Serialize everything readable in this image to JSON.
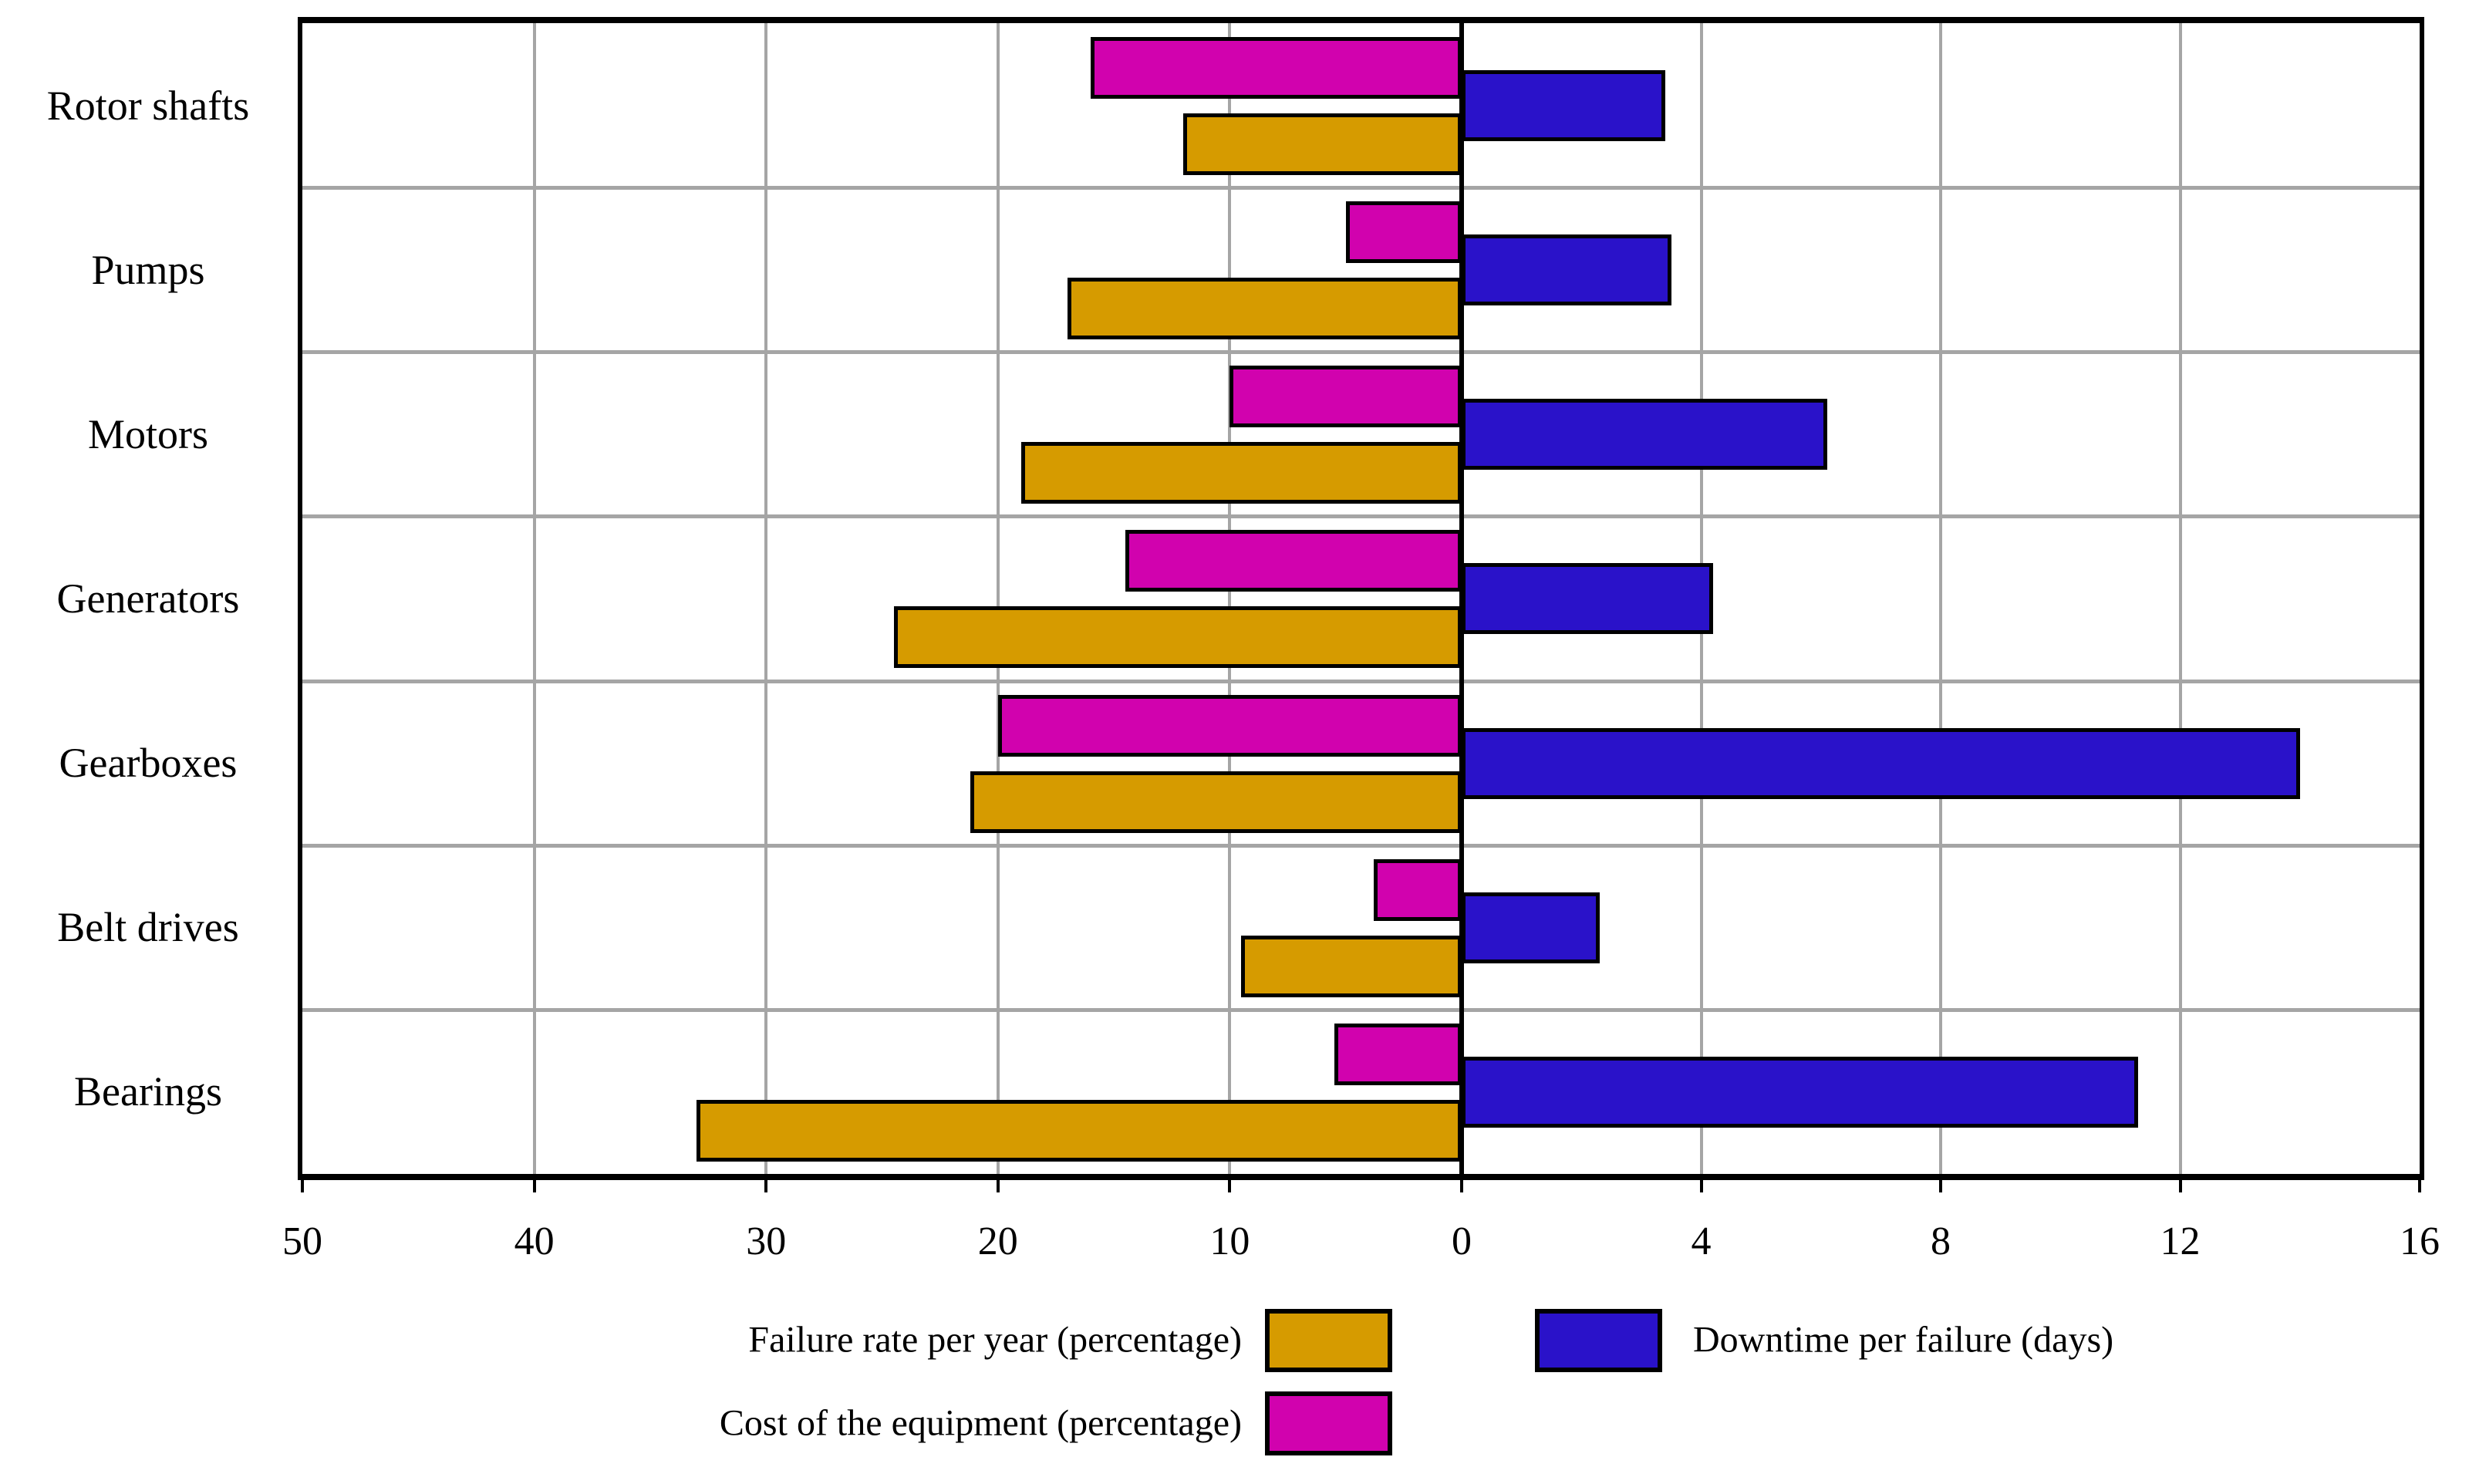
{
  "chart_data": {
    "type": "bar",
    "variant": "horizontal-diverging",
    "title": "",
    "categories": [
      "Rotor shafts",
      "Pumps",
      "Motors",
      "Generators",
      "Gearboxes",
      "Belt drives",
      "Bearings"
    ],
    "series": [
      {
        "name": "Failure rate per year (percentage)",
        "side": "left",
        "color": "#d69b00",
        "values": [
          12,
          17,
          19,
          24.5,
          21.2,
          9.5,
          33
        ]
      },
      {
        "name": "Cost of the equipment (percentage)",
        "side": "left",
        "color": "#d102ae",
        "values": [
          16,
          5,
          10,
          14.5,
          20,
          3.8,
          5.5
        ]
      },
      {
        "name": "Downtime per failure (days)",
        "side": "right",
        "color": "#2a12c9",
        "values": [
          3.4,
          3.5,
          6.1,
          4.2,
          14,
          2.3,
          11.3
        ]
      }
    ],
    "left_axis": {
      "max": 50,
      "ticks": [
        50,
        40,
        30,
        20,
        10,
        0
      ],
      "tick_labels": [
        "50",
        "40",
        "30",
        "20",
        "10",
        "0"
      ]
    },
    "right_axis": {
      "max": 16,
      "ticks": [
        4,
        8,
        12,
        16
      ],
      "tick_labels": [
        "4",
        "8",
        "12",
        "16"
      ]
    },
    "grid": true,
    "gridline_color": "#a5a5a5",
    "bar_border_color": "#000000",
    "legend_position": "bottom"
  }
}
